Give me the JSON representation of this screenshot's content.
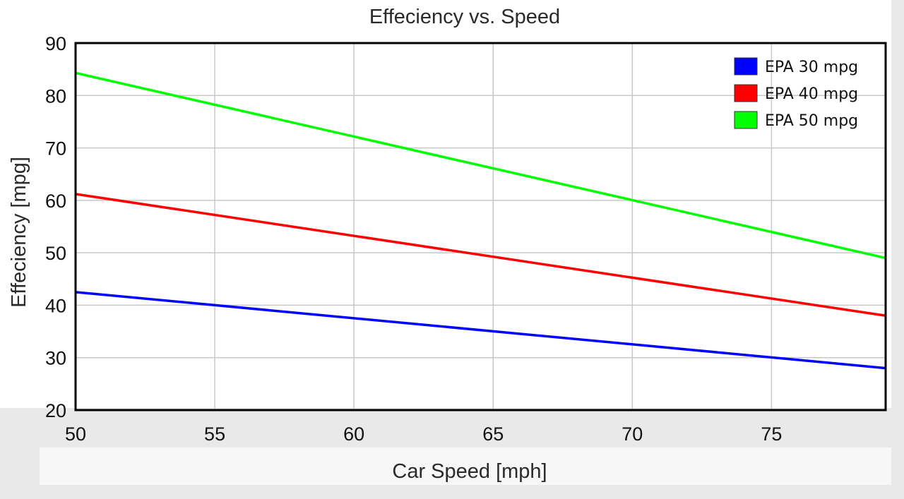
{
  "chart_data": {
    "type": "line",
    "title": "Effeciency vs. Speed",
    "xlabel": "Car Speed [mph]",
    "ylabel": "Effeciency [mpg]",
    "xlim": [
      50,
      79.1
    ],
    "ylim": [
      20,
      90
    ],
    "xticks": [
      50,
      55,
      60,
      65,
      70,
      75
    ],
    "yticks": [
      20,
      30,
      40,
      50,
      60,
      70,
      80,
      90
    ],
    "grid": true,
    "legend_position": "top-right",
    "x": [
      50,
      79.1
    ],
    "series": [
      {
        "name": "EPA 30 mpg",
        "color": "#0000ff",
        "values": [
          42.5,
          28.0
        ]
      },
      {
        "name": "EPA 40 mpg",
        "color": "#ff0000",
        "values": [
          61.2,
          38.0
        ]
      },
      {
        "name": "EPA 50 mpg",
        "color": "#00ff00",
        "values": [
          84.3,
          49.0
        ]
      }
    ]
  }
}
